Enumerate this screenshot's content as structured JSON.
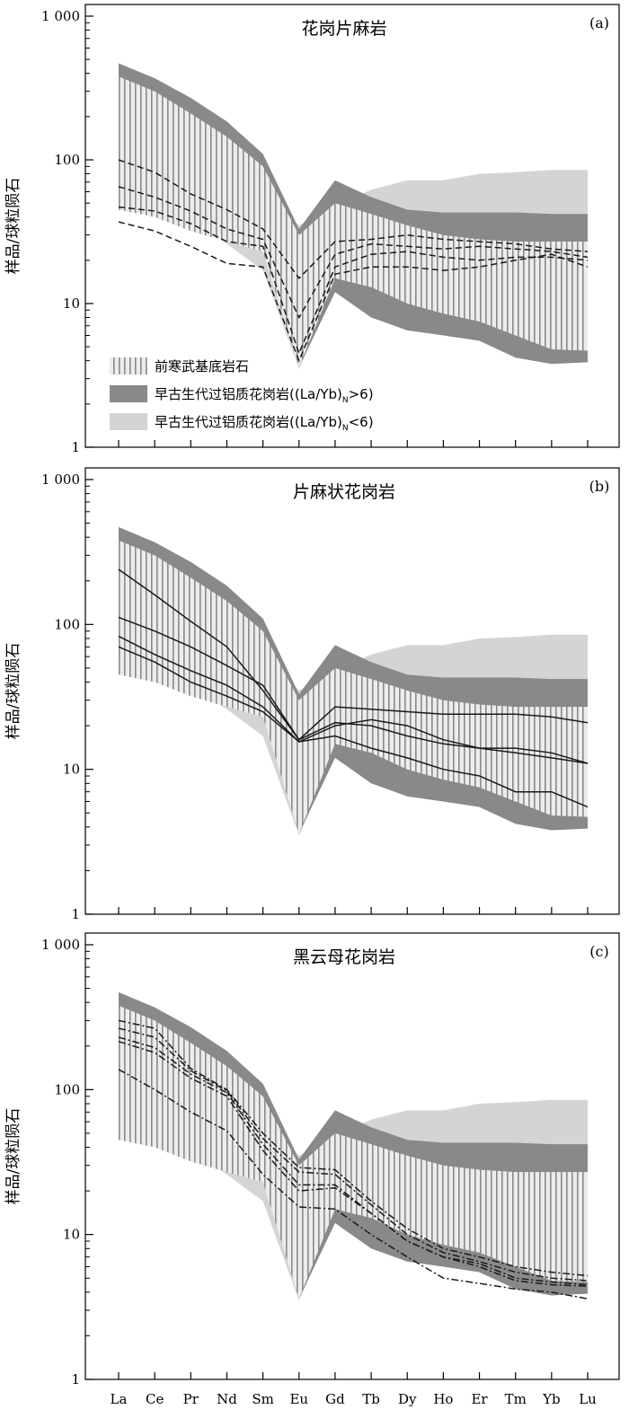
{
  "chart_data": {
    "type": "line",
    "log_y": true,
    "elements": [
      "La",
      "Ce",
      "Pr",
      "Nd",
      "Sm",
      "Eu",
      "Gd",
      "Tb",
      "Dy",
      "Ho",
      "Er",
      "Tm",
      "Yb",
      "Lu"
    ],
    "x_tick_labels": [
      "La",
      "Ce",
      "Pr",
      "Nd",
      "Sm",
      "Eu",
      "Gd",
      "Tb",
      "Dy",
      "Ho",
      "Er",
      "Tm",
      "Yb",
      "Lu"
    ],
    "ylim": [
      1,
      1000
    ],
    "y_ticks": [
      1,
      10,
      100,
      1000
    ],
    "y_tick_labels": [
      "1",
      "10",
      "100",
      "1 000"
    ],
    "ylabel": "样品/球粒陨石",
    "colors": {
      "early_paleozoic_high": "#898989",
      "early_paleozoic_low": "#d4d4d4",
      "precambrian_basement": "#aaaaaa",
      "sample_lines": "#1a1a1a"
    },
    "legend": [
      {
        "key": "precambrian_basement",
        "label": "前寒武基底岩石"
      },
      {
        "key": "early_paleozoic_high",
        "label_main": "早古生代过铝质花岗岩((La/Yb)",
        "label_sub": "N",
        "label_tail": ">6)"
      },
      {
        "key": "early_paleozoic_low",
        "label_main": "早古生代过铝质花岗岩((La/Yb)",
        "label_sub": "N",
        "label_tail": "<6)"
      }
    ],
    "fields": {
      "early_paleozoic_low": {
        "upper": [
          210,
          180,
          135,
          100,
          60,
          35,
          48,
          62,
          72,
          72,
          80,
          82,
          85,
          85
        ],
        "lower": [
          65,
          55,
          38,
          26,
          17,
          3.5,
          13,
          13,
          12,
          11,
          11,
          11,
          11,
          11
        ]
      },
      "early_paleozoic_high": {
        "upper": [
          470,
          370,
          270,
          185,
          110,
          33,
          72,
          55,
          45,
          43,
          43,
          43,
          42,
          42
        ],
        "lower": [
          185,
          150,
          108,
          78,
          50,
          3.6,
          12,
          8,
          6.5,
          6,
          5.5,
          4.2,
          3.8,
          3.9
        ]
      },
      "precambrian_basement": {
        "upper": [
          380,
          300,
          210,
          145,
          90,
          30,
          50,
          42,
          35,
          30,
          28,
          27,
          27,
          27
        ],
        "lower": [
          45,
          40,
          32,
          27,
          23,
          3.6,
          15,
          13,
          10,
          8.5,
          7.5,
          6,
          4.8,
          4.7
        ]
      }
    },
    "panels": [
      {
        "label": "(a)",
        "title": "花岗片麻岩",
        "show_legend": true,
        "line_style": "dashed",
        "series": [
          {
            "values": [
              100,
              82,
              58,
              45,
              33,
              15,
              27,
              28,
              30,
              28,
              27,
              26,
              24,
              23
            ]
          },
          {
            "values": [
              65,
              55,
              44,
              33,
              28,
              8,
              22,
              26,
              25,
              24,
              25,
              24,
              23,
              21
            ]
          },
          {
            "values": [
              47,
              44,
              36,
              27,
              25,
              4.5,
              18,
              22,
              23,
              21,
              20,
              21,
              21,
              20
            ]
          },
          {
            "values": [
              37,
              32,
              25,
              19,
              18,
              4,
              16,
              18,
              18,
              17,
              18,
              20,
              22,
              18
            ]
          }
        ]
      },
      {
        "label": "(b)",
        "title": "片麻状花岗岩",
        "show_legend": false,
        "line_style": "solid",
        "series": [
          {
            "values": [
              240,
              160,
              105,
              70,
              35,
              16,
              27,
              26,
              25,
              24,
              24,
              24,
              23,
              21
            ]
          },
          {
            "values": [
              112,
              90,
              70,
              52,
              38,
              16,
              21,
              20,
              17,
              15,
              14,
              13,
              12,
              11
            ]
          },
          {
            "values": [
              83,
              62,
              48,
              38,
              27,
              15.5,
              20,
              22,
              20,
              16,
              14,
              14,
              13,
              11
            ]
          },
          {
            "values": [
              70,
              55,
              40,
              32,
              25,
              15.5,
              17,
              14,
              12,
              10,
              9,
              7,
              7,
              5.5
            ]
          }
        ]
      },
      {
        "label": "(c)",
        "title": "黑云母花岗岩",
        "show_legend": false,
        "line_style": "dashdot",
        "series": [
          {
            "values": [
              300,
              265,
              140,
              100,
              50,
              29,
              28,
              17,
              11,
              8,
              7,
              6,
              5.5,
              5.2
            ]
          },
          {
            "values": [
              265,
              230,
              135,
              98,
              46,
              27,
              26,
              16,
              10,
              7.5,
              6.5,
              5.5,
              5,
              4.8
            ]
          },
          {
            "values": [
              230,
              195,
              128,
              95,
              42,
              22,
              22,
              14,
              9,
              7,
              6.3,
              5,
              4.7,
              4.5
            ]
          },
          {
            "values": [
              215,
              180,
              120,
              90,
              38,
              20,
              21,
              14,
              9,
              7,
              6,
              4.8,
              4.5,
              4.4
            ]
          },
          {
            "values": [
              138,
              100,
              70,
              52,
              26,
              15.5,
              15,
              10,
              7,
              5,
              4.6,
              4.2,
              4,
              3.6
            ]
          }
        ]
      }
    ]
  }
}
